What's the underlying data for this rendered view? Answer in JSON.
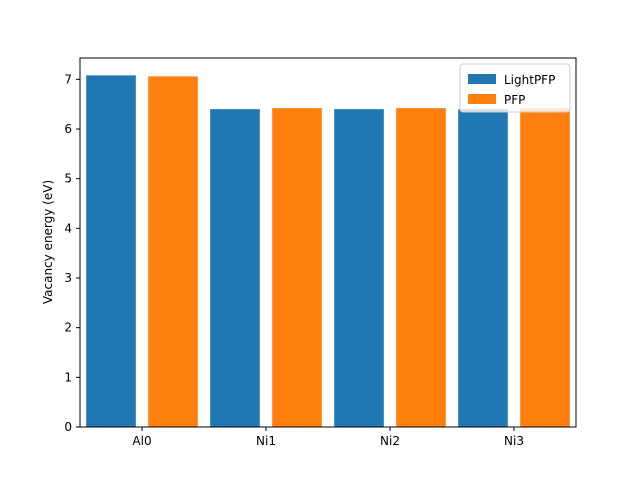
{
  "chart_data": {
    "type": "bar",
    "categories": [
      "Al0",
      "Ni1",
      "Ni2",
      "Ni3"
    ],
    "series": [
      {
        "name": "LightPFP",
        "values": [
          7.08,
          6.4,
          6.4,
          6.4
        ],
        "color": "#1f77b4"
      },
      {
        "name": "PFP",
        "values": [
          7.06,
          6.42,
          6.42,
          6.42
        ],
        "color": "#ff7f0e"
      }
    ],
    "title": "",
    "xlabel": "",
    "ylabel": "Vacancy energy (eV)",
    "ylim": [
      0,
      7.43
    ],
    "yticks": [
      0,
      1,
      2,
      3,
      4,
      5,
      6,
      7
    ],
    "grid": false,
    "legend_position": "top-right"
  }
}
